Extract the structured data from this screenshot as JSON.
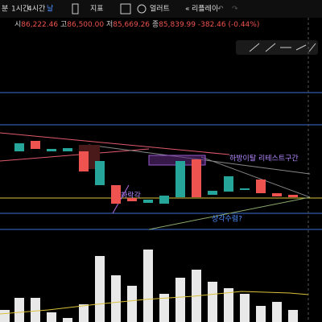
{
  "toolbar": {
    "intervals": [
      "분",
      "1시간",
      "4시간",
      "날"
    ],
    "items": [
      "지표",
      "얼러트",
      "리플레이"
    ]
  },
  "legend": {
    "open_label": "시",
    "open": "86,222.46",
    "high_label": "고",
    "high": "86,500.00",
    "low_label": "저",
    "low": "85,669.26",
    "close_label": "종",
    "close": "85,839.99",
    "change": "-382.46 (-0.44%)"
  },
  "annotations": [
    "하방이탈 리테스트구간",
    "하락각",
    "상각수렴?"
  ]
}
